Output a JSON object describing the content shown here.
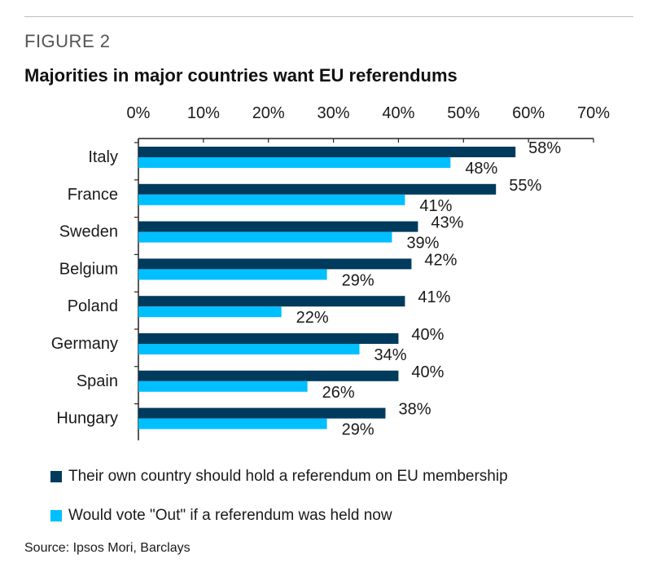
{
  "figure_label": "FIGURE 2",
  "source": "Source: Ipsos Mori, Barclays",
  "colors": {
    "dark": "#003a5d",
    "light": "#00bfff"
  },
  "chart_data": {
    "type": "bar",
    "orientation": "horizontal",
    "title": "Majorities in major countries want EU referendums",
    "categories": [
      "Italy",
      "France",
      "Sweden",
      "Belgium",
      "Poland",
      "Germany",
      "Spain",
      "Hungary"
    ],
    "series": [
      {
        "name": "Their own country should hold a referendum on EU membership",
        "values": [
          58,
          55,
          43,
          42,
          41,
          40,
          40,
          38
        ]
      },
      {
        "name": "Would vote \"Out\" if a referendum was held now",
        "values": [
          48,
          41,
          39,
          29,
          22,
          34,
          26,
          29
        ]
      }
    ],
    "xlim": [
      0,
      70
    ],
    "xticks": [
      0,
      10,
      20,
      30,
      40,
      50,
      60,
      70
    ],
    "tick_labels": [
      "0%",
      "10%",
      "20%",
      "30%",
      "40%",
      "50%",
      "60%",
      "70%"
    ],
    "value_suffix": "%",
    "axis_position": "top",
    "legend_position": "bottom"
  }
}
